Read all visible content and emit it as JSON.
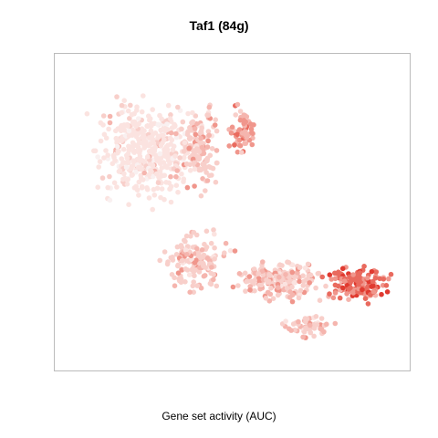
{
  "chart_data": {
    "type": "scatter",
    "title": "Taf1 (84g)",
    "xlabel": "Gene set activity (AUC)",
    "ylabel": "",
    "grid": false,
    "legend": "none",
    "color_scale": {
      "low": "#ffffff",
      "high": "#e50000",
      "levels": [
        "#f9f0f0",
        "#fbe3e0",
        "#f8cfca",
        "#f5b5ae",
        "#f0968c",
        "#e96a5e",
        "#e03a30",
        "#d60000"
      ]
    },
    "clusters": [
      {
        "name": "",
        "cx": 0.24,
        "cy": 0.71,
        "rx": 0.19,
        "ry": 0.21,
        "n": 430,
        "level": 1,
        "strength": 0.15
      },
      {
        "name": "",
        "cx": 0.4,
        "cy": 0.72,
        "rx": 0.08,
        "ry": 0.18,
        "n": 150,
        "level": 2,
        "strength": 0.3
      },
      {
        "name": "",
        "cx": 0.53,
        "cy": 0.78,
        "rx": 0.05,
        "ry": 0.1,
        "n": 70,
        "level": 3,
        "strength": 0.55
      },
      {
        "name": "",
        "cx": 0.39,
        "cy": 0.33,
        "rx": 0.13,
        "ry": 0.13,
        "n": 150,
        "level": 2,
        "strength": 0.3
      },
      {
        "name": "",
        "cx": 0.64,
        "cy": 0.27,
        "rx": 0.16,
        "ry": 0.08,
        "n": 230,
        "level": 2,
        "strength": 0.4
      },
      {
        "name": "",
        "cx": 0.87,
        "cy": 0.26,
        "rx": 0.12,
        "ry": 0.08,
        "n": 150,
        "level": 4,
        "strength": 0.65
      },
      {
        "name": "",
        "cx": 0.72,
        "cy": 0.12,
        "rx": 0.1,
        "ry": 0.05,
        "n": 60,
        "level": 2,
        "strength": 0.35
      }
    ]
  }
}
